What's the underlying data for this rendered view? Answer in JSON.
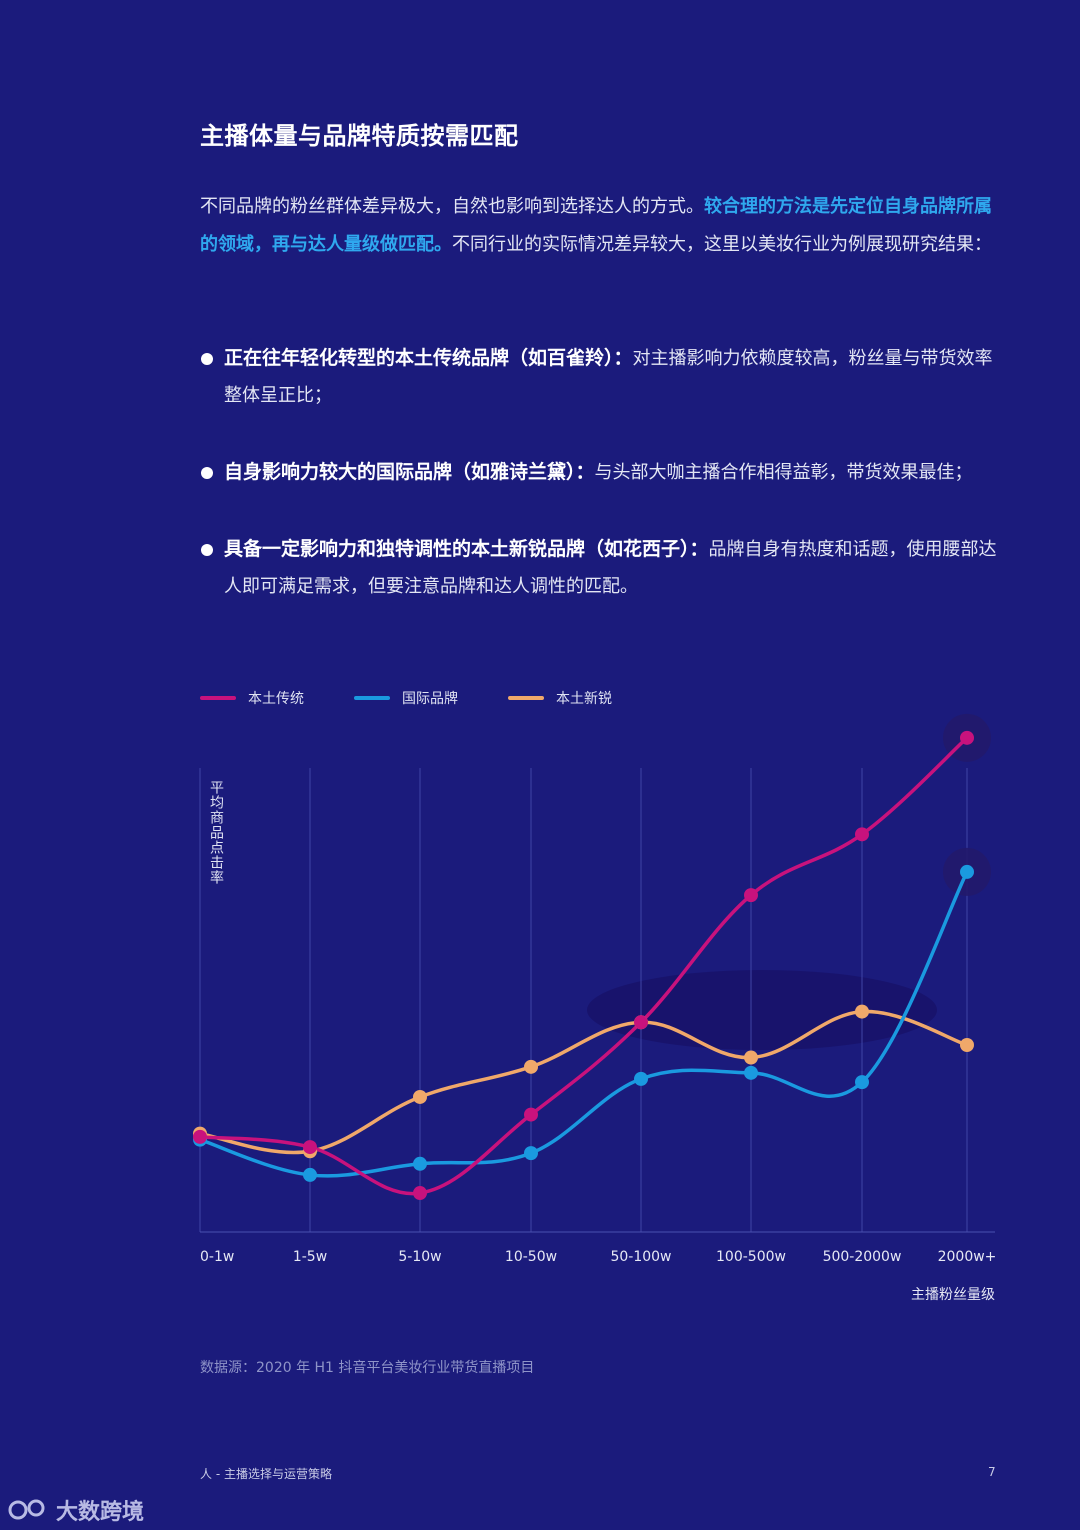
{
  "heading": "主播体量与品牌特质按需匹配",
  "intro": {
    "part1": "不同品牌的粉丝群体差异极大，自然也影响到选择达人的方式。",
    "highlight": "较合理的方法是先定位自身品牌所属的领域，再与达人量级做匹配。",
    "part2": "不同行业的实际情况差异较大，这里以美妆行业为例展现研究结果："
  },
  "bullets": [
    {
      "strong": "正在往年轻化转型的本土传统品牌（如百雀羚）：",
      "text": "对主播影响力依赖度较高，粉丝量与带货效率整体呈正比；"
    },
    {
      "strong": "自身影响力较大的国际品牌（如雅诗兰黛）：",
      "text": "与头部大咖主播合作相得益彰，带货效果最佳；"
    },
    {
      "strong": "具备一定影响力和独特调性的本土新锐品牌（如花西子）：",
      "text": "品牌自身有热度和话题，使用腰部达人即可满足需求，但要注意品牌和达人调性的匹配。"
    }
  ],
  "chart_data": {
    "type": "line",
    "title": "",
    "xlabel": "主播粉丝量级",
    "ylabel": "平均商品点击率",
    "categories": [
      "0-1w",
      "1-5w",
      "5-10w",
      "10-50w",
      "50-100w",
      "100-500w",
      "500-2000w",
      "2000w+"
    ],
    "ylim": [
      0,
      100
    ],
    "grid": "vertical",
    "legend_position": "top-left",
    "series": [
      {
        "name": "本土传统",
        "color": "#c8127d",
        "values": [
          20.5,
          18.3,
          8.4,
          25.3,
          45.2,
          72.6,
          85.7,
          106.5
        ]
      },
      {
        "name": "国际品牌",
        "color": "#1a9ae0",
        "values": [
          19.9,
          12.3,
          14.7,
          17.0,
          33.0,
          34.3,
          32.3,
          77.6
        ]
      },
      {
        "name": "本土新锐",
        "color": "#f0a86a",
        "values": [
          21.2,
          17.4,
          29.1,
          35.6,
          45.2,
          37.6,
          47.5,
          40.3
        ]
      }
    ]
  },
  "source": "数据源：2020 年 H1 抖音平台美妆行业带货直播项目",
  "footer": {
    "left": "人 - 主播选择与运营策略",
    "page": "7"
  },
  "watermark": "大数跨境"
}
